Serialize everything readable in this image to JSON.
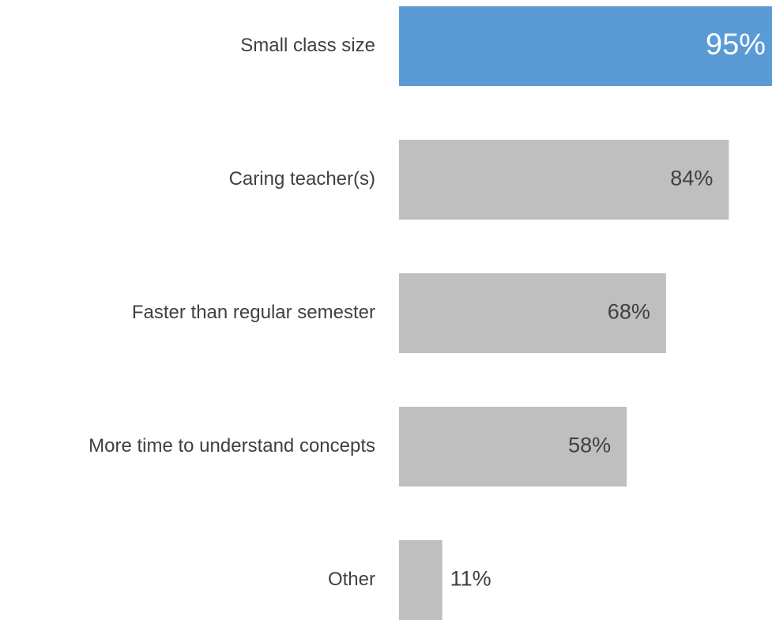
{
  "chart_data": {
    "type": "hbar",
    "categories": [
      "Small class size",
      "Caring teacher(s)",
      "Faster than regular semester",
      "More time to understand concepts",
      "Other"
    ],
    "values": [
      95,
      84,
      68,
      58,
      11
    ],
    "value_labels": [
      "95%",
      "84%",
      "68%",
      "58%",
      "11%"
    ],
    "colors": [
      "#5b9bd5",
      "#bfbfbf",
      "#bfbfbf",
      "#bfbfbf",
      "#bfbfbf"
    ],
    "xlim": [
      0,
      95
    ]
  }
}
